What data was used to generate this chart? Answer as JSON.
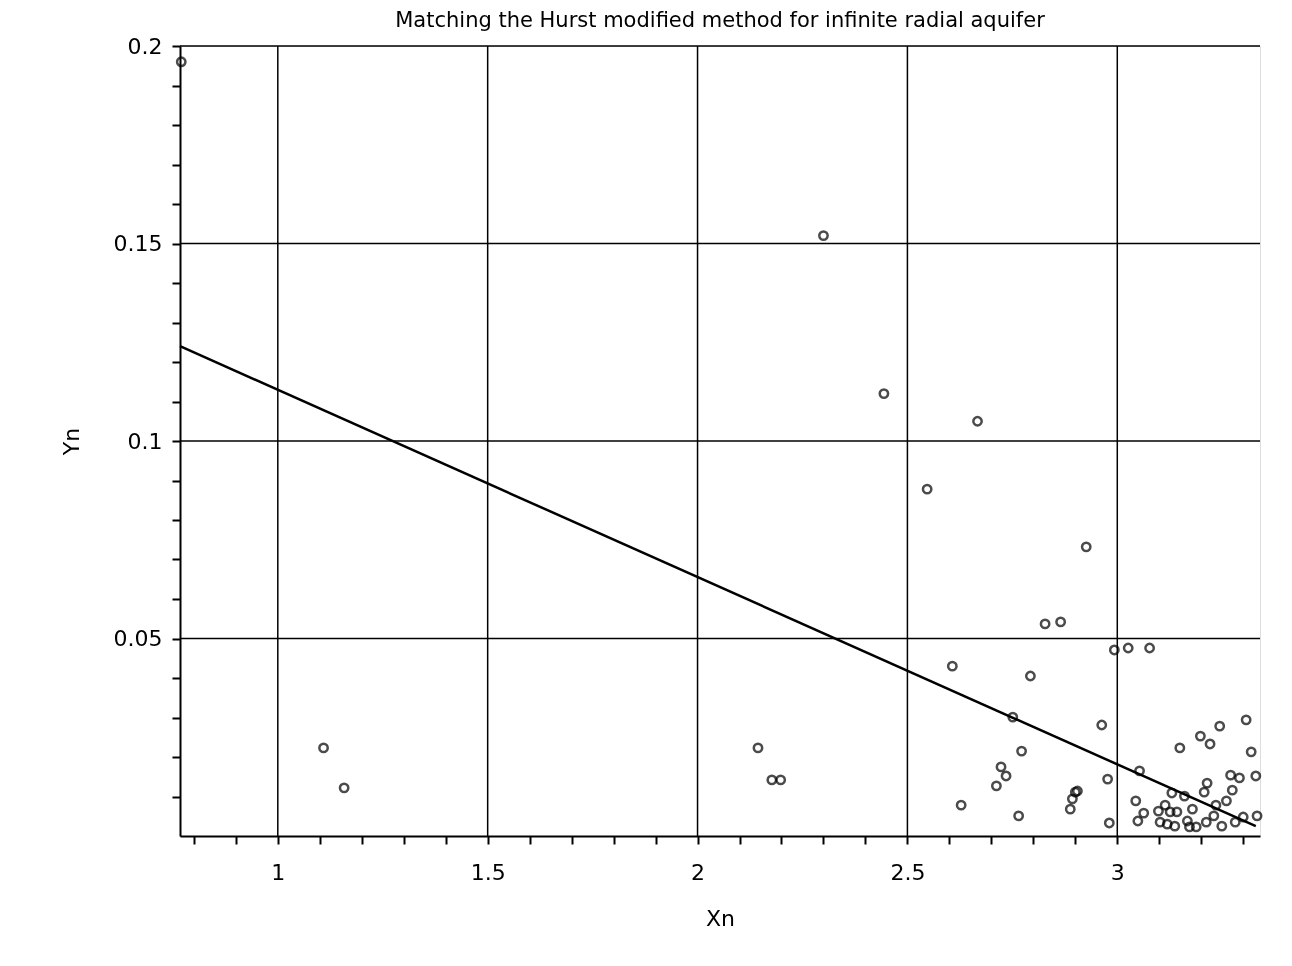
{
  "chart_data": {
    "type": "scatter",
    "title": "Matching the Hurst modified method for infinite radial aquifer",
    "xlabel": "Xn",
    "ylabel": "Yn",
    "xlim": [
      0.767,
      3.34
    ],
    "ylim": [
      0,
      0.2
    ],
    "xticks": [
      {
        "value": 0.8,
        "label": null
      },
      {
        "value": 0.9,
        "label": null
      },
      1,
      {
        "value": 1.1,
        "label": null
      },
      {
        "value": 1.2,
        "label": null
      },
      {
        "value": 1.3,
        "label": null
      },
      {
        "value": 1.4,
        "label": null
      },
      1.5,
      {
        "value": 1.6,
        "label": null
      },
      {
        "value": 1.7,
        "label": null
      },
      {
        "value": 1.8,
        "label": null
      },
      {
        "value": 1.9,
        "label": null
      },
      2,
      {
        "value": 2.1,
        "label": null
      },
      {
        "value": 2.2,
        "label": null
      },
      {
        "value": 2.3,
        "label": null
      },
      {
        "value": 2.4,
        "label": null
      },
      2.5,
      {
        "value": 2.6,
        "label": null
      },
      {
        "value": 2.7,
        "label": null
      },
      {
        "value": 2.8,
        "label": null
      },
      {
        "value": 2.9,
        "label": null
      },
      3,
      {
        "value": 3.1,
        "label": null
      },
      {
        "value": 3.2,
        "label": null
      },
      {
        "value": 3.3,
        "label": null
      }
    ],
    "yticks": [
      {
        "value": 0.01,
        "label": null
      },
      {
        "value": 0.02,
        "label": null
      },
      {
        "value": 0.03,
        "label": null
      },
      {
        "value": 0.04,
        "label": null
      },
      0.05,
      {
        "value": 0.06,
        "label": null
      },
      {
        "value": 0.07,
        "label": null
      },
      {
        "value": 0.08,
        "label": null
      },
      {
        "value": 0.09,
        "label": null
      },
      0.1,
      {
        "value": 0.11,
        "label": null
      },
      {
        "value": 0.12,
        "label": null
      },
      {
        "value": 0.13,
        "label": null
      },
      {
        "value": 0.14,
        "label": null
      },
      0.15,
      {
        "value": 0.16,
        "label": null
      },
      {
        "value": 0.17,
        "label": null
      },
      {
        "value": 0.18,
        "label": null
      },
      {
        "value": 0.19,
        "label": null
      },
      0.2
    ],
    "grid": true,
    "series": [
      {
        "marker": "circle",
        "color": "#000000",
        "x": [
          0.77,
          1.109,
          1.158,
          2.144,
          2.177,
          2.198,
          2.3,
          2.444,
          2.547,
          2.607,
          2.628,
          2.667,
          2.712,
          2.723,
          2.735,
          2.751,
          2.765,
          2.772,
          2.793,
          2.828,
          2.865,
          2.888,
          2.893,
          2.9,
          2.905,
          2.926,
          2.963,
          2.977,
          2.981,
          2.993,
          3.026,
          3.053,
          3.077,
          3.044,
          3.063,
          3.049,
          3.13,
          3.149,
          3.198,
          3.221,
          3.244,
          3.307,
          3.319,
          3.33,
          3.27,
          3.291,
          3.274,
          3.26,
          3.214,
          3.207,
          3.235,
          3.16,
          3.179,
          3.114,
          3.098,
          3.126,
          3.142,
          3.102,
          3.119,
          3.137,
          3.167,
          3.172,
          3.188,
          3.212,
          3.23,
          3.249,
          3.281,
          3.3,
          3.333
        ],
        "values": [
          0.196,
          0.0223,
          0.0122,
          0.0223,
          0.0142,
          0.0142,
          0.152,
          0.112,
          0.0878,
          0.043,
          0.0078,
          0.105,
          0.0127,
          0.0175,
          0.0152,
          0.0301,
          0.0051,
          0.0215,
          0.0405,
          0.0537,
          0.0542,
          0.0068,
          0.0094,
          0.0111,
          0.0114,
          0.0732,
          0.0281,
          0.0144,
          0.0033,
          0.0471,
          0.0476,
          0.0165,
          0.0476,
          0.0089,
          0.0058,
          0.0038,
          0.0109,
          0.0223,
          0.0253,
          0.0233,
          0.0278,
          0.0294,
          0.0213,
          0.0152,
          0.0154,
          0.0147,
          0.0116,
          0.0089,
          0.0134,
          0.0111,
          0.0078,
          0.0101,
          0.0068,
          0.0078,
          0.0063,
          0.0061,
          0.0061,
          0.0035,
          0.003,
          0.0025,
          0.0038,
          0.0023,
          0.0023,
          0.0035,
          0.0051,
          0.0025,
          0.0035,
          0.0048,
          0.0051
        ]
      },
      {
        "type": "line",
        "color": "#000000",
        "x": [
          0.767,
          3.33
        ],
        "values": [
          0.124,
          0.0025
        ]
      }
    ]
  }
}
